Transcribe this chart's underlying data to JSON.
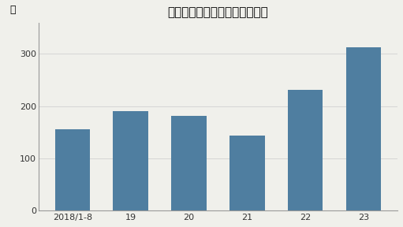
{
  "title": "コンプラ違反企業の倒産が増加",
  "categories": [
    "2018/1-8",
    "19",
    "20",
    "21",
    "22",
    "23"
  ],
  "values": [
    155,
    191,
    182,
    143,
    231,
    313
  ],
  "bar_color": "#4f7ea0",
  "ylabel": "件",
  "ylim": [
    0,
    360
  ],
  "yticks": [
    0,
    100,
    200,
    300
  ],
  "background_color": "#f0f0eb",
  "title_fontsize": 11,
  "label_fontsize": 9,
  "tick_fontsize": 8
}
